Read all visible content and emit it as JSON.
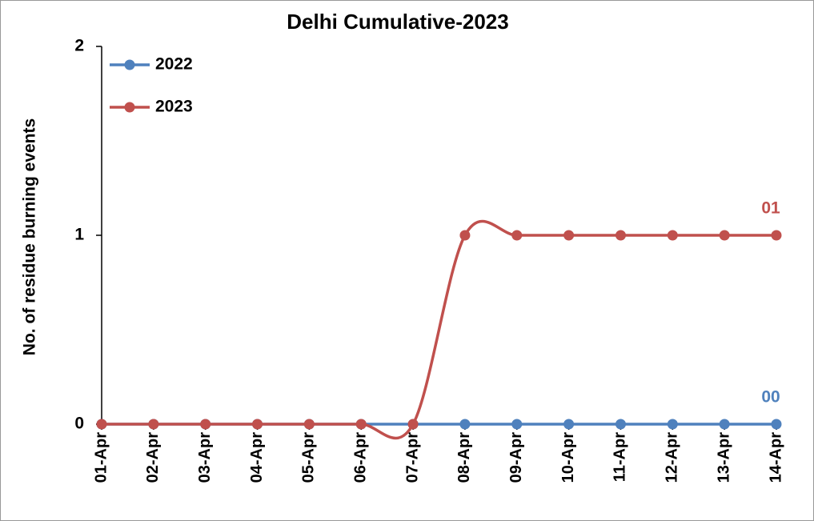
{
  "chart_data": {
    "type": "line",
    "title": "Delhi Cumulative-2023",
    "y_label": "No. of residue burning events",
    "categories": [
      "01-Apr",
      "02-Apr",
      "03-Apr",
      "04-Apr",
      "05-Apr",
      "06-Apr",
      "07-Apr",
      "08-Apr",
      "09-Apr",
      "10-Apr",
      "11-Apr",
      "12-Apr",
      "13-Apr",
      "14-Apr"
    ],
    "series": [
      {
        "name": "2022",
        "color": "#4f81bd",
        "values": [
          0,
          0,
          0,
          0,
          0,
          0,
          0,
          0,
          0,
          0,
          0,
          0,
          0,
          0
        ],
        "value_labels": [
          null,
          null,
          null,
          null,
          null,
          null,
          null,
          null,
          null,
          null,
          null,
          null,
          null,
          "00"
        ]
      },
      {
        "name": "2023",
        "color": "#c0504d",
        "values": [
          0,
          0,
          0,
          0,
          0,
          0,
          0,
          1,
          1,
          1,
          1,
          1,
          1,
          1
        ],
        "value_labels": [
          null,
          null,
          null,
          null,
          null,
          null,
          null,
          null,
          null,
          null,
          null,
          null,
          null,
          "01"
        ]
      }
    ],
    "ylim": [
      0,
      2
    ],
    "yticks": [
      0,
      1,
      2
    ],
    "smooth": true,
    "legend": "top-left"
  }
}
